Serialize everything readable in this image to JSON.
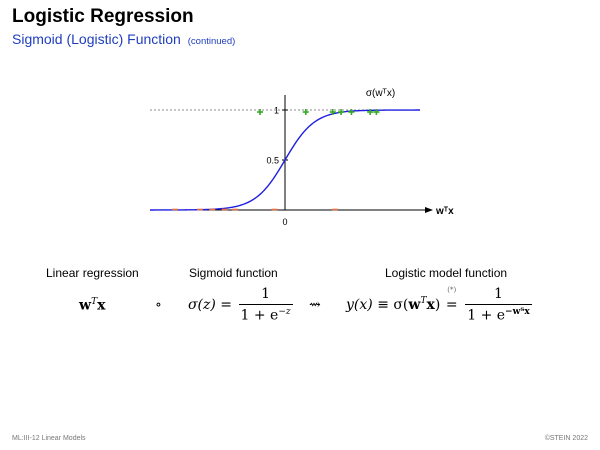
{
  "slide": {
    "title": "Logistic Regression",
    "subtitle": "Sigmoid (Logistic) Function",
    "subtitle_note": "(continued)",
    "accent_color": "#1f3ebd"
  },
  "chart_data": {
    "type": "line",
    "function_label": "σ(wᵀx)",
    "x_axis_label": "wᵀx",
    "ytick_labels": [
      "1",
      "0.5"
    ],
    "xtick_labels": [
      "0"
    ],
    "yticks": [
      1,
      0.5
    ],
    "xticks": [
      0
    ],
    "ylim": [
      0,
      1.15
    ],
    "xlim": [
      -6.5,
      6.5
    ],
    "reference_line_y": 1,
    "curve": {
      "function": "sigmoid",
      "color": "#1f1fe0"
    },
    "positive_points": {
      "marker": "+",
      "color": "#33aa22",
      "x": [
        -1.2,
        1.0,
        2.3,
        2.7,
        3.2,
        4.1,
        4.4
      ]
    },
    "negative_points": {
      "marker": "−",
      "color": "#e87040",
      "x": [
        -5.3,
        -4.1,
        -3.5,
        -2.9,
        -2.4,
        -0.5,
        2.4
      ]
    }
  },
  "equations": {
    "linear_label": "Linear regression",
    "sigmoid_label": "Sigmoid function",
    "model_label": "Logistic model function",
    "linear_w": "w",
    "linear_T": "T",
    "linear_x": "x",
    "compose_symbol": "∘",
    "sigma_lhs": "σ(z) =",
    "sigma_num": "1",
    "sigma_den_base": "1 + e",
    "sigma_den_exp": "−z",
    "leadsto_symbol": "⇝",
    "model_y": "y(x)",
    "equiv_symbol": "≡",
    "model_sigma_open": "σ(",
    "model_w": "w",
    "model_T": "T",
    "model_x": "x",
    "model_sigma_close": ")",
    "star_mark": "(*)",
    "eq_symbol": "=",
    "model_num": "1",
    "model_den_base": "1 + e",
    "model_den_exp": "−wᵀx"
  },
  "footer": {
    "left": "ML:III-12    Linear Models",
    "right": "©STEIN 2022"
  }
}
